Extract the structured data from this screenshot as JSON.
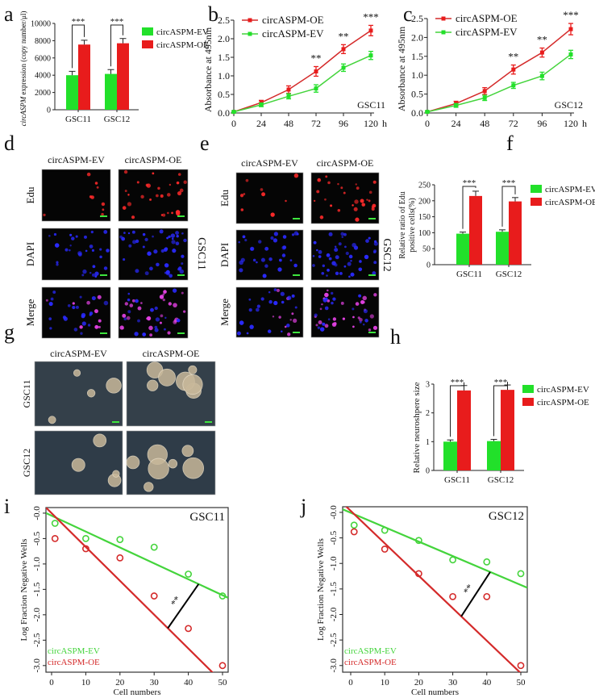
{
  "colors": {
    "ev": "#22e02a",
    "oe": "#e81c1c",
    "ev_line": "#44d43c",
    "oe_line": "#d42a2a",
    "edu": "#ff2a2a",
    "dapi": "#2a2aff",
    "merge": "#e040e0",
    "scale_bar": "#3ee63e",
    "sphere_bg": "#34404a",
    "sphere": "#c8b89a"
  },
  "panel_labels": [
    "a",
    "b",
    "c",
    "d",
    "e",
    "f",
    "g",
    "h",
    "i",
    "j"
  ],
  "microscopy": {
    "d": {
      "columns": [
        "circASPM-EV",
        "circASPM-OE"
      ],
      "rows": [
        "Edu",
        "DAPI",
        "Merge"
      ],
      "side_label": "GSC11"
    },
    "e": {
      "columns": [
        "circASPM-EV",
        "circASPM-OE"
      ],
      "rows": [
        "Edu",
        "DAPI",
        "Merge"
      ],
      "side_label": "GSC12"
    },
    "g": {
      "columns": [
        "circASPM-EV",
        "circASPM-OE"
      ],
      "rows": [
        "GSC11",
        "GSC12"
      ]
    }
  },
  "chart_data": [
    {
      "panel": "a",
      "type": "bar",
      "categories": [
        "GSC11",
        "GSC12"
      ],
      "series": [
        {
          "name": "circASPM-EV",
          "values": [
            4000,
            4150
          ],
          "errors": [
            450,
            500
          ]
        },
        {
          "name": "circASPM-OE",
          "values": [
            7550,
            7700
          ],
          "errors": [
            500,
            550
          ]
        }
      ],
      "ylabel_italic": "circASPM",
      "ylabel": " expression (copy number/μl)",
      "ylim": [
        0,
        10000
      ],
      "yticks": [
        "0",
        "2000",
        "4000",
        "6000",
        "8000",
        "10000"
      ],
      "significance": [
        "***",
        "***"
      ],
      "legend": "right"
    },
    {
      "panel": "b",
      "type": "line",
      "x": [
        0,
        24,
        48,
        72,
        96,
        120
      ],
      "xticks": [
        "0",
        "24",
        "48",
        "72",
        "96",
        "120"
      ],
      "xunit": "h",
      "series": [
        {
          "name": "circASPM-OE",
          "values": [
            0.03,
            0.28,
            0.63,
            1.12,
            1.72,
            2.22
          ],
          "errors": [
            0.02,
            0.06,
            0.1,
            0.13,
            0.12,
            0.14
          ]
        },
        {
          "name": "circASPM-EV",
          "values": [
            0.03,
            0.22,
            0.45,
            0.66,
            1.22,
            1.55
          ],
          "errors": [
            0.02,
            0.05,
            0.07,
            0.1,
            0.1,
            0.11
          ]
        }
      ],
      "ylabel": "Absorbance at 495nm",
      "ylim": [
        0,
        2.5
      ],
      "yticks": [
        "0.0",
        "0.5",
        "1.0",
        "1.5",
        "2.0",
        "2.5"
      ],
      "annotation": "GSC11",
      "significance": [
        {
          "x": 72,
          "label": "**"
        },
        {
          "x": 96,
          "label": "**"
        },
        {
          "x": 120,
          "label": "***"
        }
      ],
      "legend": "top-left"
    },
    {
      "panel": "c",
      "type": "line",
      "x": [
        0,
        24,
        48,
        72,
        96,
        120
      ],
      "xticks": [
        "0",
        "24",
        "48",
        "72",
        "96",
        "120"
      ],
      "xunit": "h",
      "series": [
        {
          "name": "circASPM-OE",
          "values": [
            0.03,
            0.25,
            0.58,
            1.15,
            1.6,
            2.22
          ],
          "errors": [
            0.02,
            0.06,
            0.09,
            0.12,
            0.12,
            0.15
          ]
        },
        {
          "name": "circASPM-EV",
          "values": [
            0.03,
            0.2,
            0.4,
            0.73,
            0.98,
            1.55
          ],
          "errors": [
            0.02,
            0.05,
            0.07,
            0.08,
            0.1,
            0.11
          ]
        }
      ],
      "ylabel": "Absorbance at 495nm",
      "ylim": [
        0,
        2.5
      ],
      "yticks": [
        "0.0",
        "0.5",
        "1.0",
        "1.5",
        "2.0",
        "2.5"
      ],
      "annotation": "GSC12",
      "significance": [
        {
          "x": 72,
          "label": "**"
        },
        {
          "x": 96,
          "label": "**"
        },
        {
          "x": 120,
          "label": "***"
        }
      ],
      "legend": "top-left"
    },
    {
      "panel": "f",
      "type": "bar",
      "categories": [
        "GSC11",
        "GSC12"
      ],
      "series": [
        {
          "name": "circASPM-EV",
          "values": [
            97,
            103
          ],
          "errors": [
            5,
            6
          ]
        },
        {
          "name": "circASPM-OE",
          "values": [
            215,
            198
          ],
          "errors": [
            15,
            12
          ]
        }
      ],
      "ylabel": "Relative  ratio of Edu",
      "ylabel2": "positive cells(%)",
      "ylim": [
        0,
        250
      ],
      "yticks": [
        "0",
        "50",
        "100",
        "150",
        "200",
        "250"
      ],
      "significance": [
        "***",
        "***"
      ],
      "legend": "right"
    },
    {
      "panel": "h",
      "type": "bar",
      "categories": [
        "GSC11",
        "GSC12"
      ],
      "series": [
        {
          "name": "circASPM-EV",
          "values": [
            1.0,
            1.02
          ],
          "errors": [
            0.06,
            0.06
          ]
        },
        {
          "name": "circASPM-OE",
          "values": [
            2.78,
            2.8
          ],
          "errors": [
            0.17,
            0.17
          ]
        }
      ],
      "ylabel": "Relative neuroshpere size",
      "ylim": [
        0,
        3
      ],
      "yticks": [
        "0",
        "1",
        "2",
        "3"
      ],
      "significance": [
        "***",
        "***"
      ],
      "legend": "right"
    },
    {
      "panel": "i",
      "type": "scatter",
      "xlabel": "Cell numbers",
      "ylabel": "Log Fraction Negative Wells",
      "x": [
        1,
        10,
        20,
        30,
        40,
        50
      ],
      "xticks": [
        "0",
        "10",
        "20",
        "30",
        "40",
        "50"
      ],
      "yticks": [
        "-0.0",
        "-0.5",
        "-1.0",
        "-1.5",
        "-2.0",
        "-2.5",
        "-3.0"
      ],
      "xlim": [
        -1.65,
        51.65
      ],
      "ylim": [
        -3.13,
        0.11
      ],
      "series": [
        {
          "name": "circASPM-EV",
          "values": [
            -0.2,
            -0.5,
            -0.52,
            -0.67,
            -1.2,
            -1.63
          ],
          "fit_intercept": -0.05,
          "fit_slope": -0.0313
        },
        {
          "name": "circASPM-OE",
          "values": [
            -0.5,
            -0.7,
            -0.88,
            -1.63,
            -2.27,
            -3.0
          ],
          "fit_intercept": 0.0,
          "fit_slope": -0.0666
        }
      ],
      "annotation": "GSC11",
      "significance": {
        "label": "**",
        "x_oe": 34,
        "x_ev": 43
      },
      "legend": "bottom-left"
    },
    {
      "panel": "j",
      "type": "scatter",
      "xlabel": "Cell numbers",
      "ylabel": "Log Fraction Negative Wells",
      "x": [
        1,
        10,
        20,
        30,
        40,
        50
      ],
      "xticks": [
        "0",
        "10",
        "20",
        "30",
        "40",
        "50"
      ],
      "yticks": [
        "-0.0",
        "-0.5",
        "-1.0",
        "-1.5",
        "-2.0",
        "-2.5",
        "-3.0"
      ],
      "xlim": [
        -2.37,
        51.9
      ],
      "ylim": [
        -3.13,
        0.11
      ],
      "series": [
        {
          "name": "circASPM-EV",
          "values": [
            -0.25,
            -0.35,
            -0.55,
            -0.93,
            -0.97,
            -1.2
          ],
          "fit_intercept": -0.007,
          "fit_slope": -0.0283
        },
        {
          "name": "circASPM-OE",
          "values": [
            -0.38,
            -0.72,
            -1.2,
            -1.65,
            -1.65,
            -3.0
          ],
          "fit_intercept": 0.03,
          "fit_slope": -0.0636
        }
      ],
      "annotation": "GSC12",
      "significance": {
        "label": "**",
        "x_oe": 32.5,
        "x_ev": 41
      },
      "legend": "bottom-left"
    }
  ]
}
